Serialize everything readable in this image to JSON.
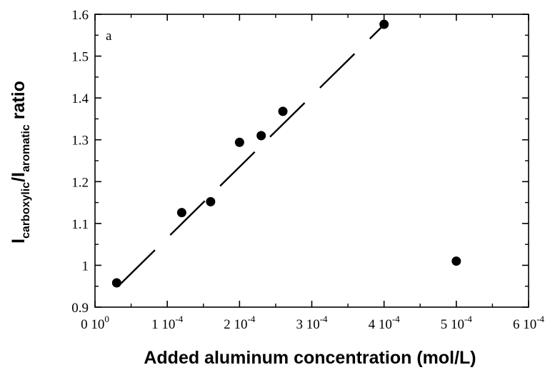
{
  "chart_data": {
    "type": "scatter",
    "panel_label": "a",
    "xlabel": "Added aluminum concentration (mol/L)",
    "ylabel": {
      "main": "I",
      "sub1": "carboxylic",
      "mid": "/I",
      "sub2": "aromatic",
      "tail": " ratio"
    },
    "xlim": [
      0,
      0.0006
    ],
    "ylim": [
      0.9,
      1.6
    ],
    "x_ticks": [
      {
        "value": 0,
        "mantissa": "0",
        "base": "10",
        "exp": "0"
      },
      {
        "value": 0.0001,
        "mantissa": "1",
        "base": "10",
        "exp": "-4"
      },
      {
        "value": 0.0002,
        "mantissa": "2",
        "base": "10",
        "exp": "-4"
      },
      {
        "value": 0.0003,
        "mantissa": "3",
        "base": "10",
        "exp": "-4"
      },
      {
        "value": 0.0004,
        "mantissa": "4",
        "base": "10",
        "exp": "-4"
      },
      {
        "value": 0.0005,
        "mantissa": "5",
        "base": "10",
        "exp": "-4"
      },
      {
        "value": 0.0006,
        "mantissa": "6",
        "base": "10",
        "exp": "-4"
      }
    ],
    "y_ticks": [
      "0.9",
      "1",
      "1.1",
      "1.2",
      "1.3",
      "1.4",
      "1.5",
      "1.6"
    ],
    "points": [
      {
        "x": 3e-05,
        "y": 0.958
      },
      {
        "x": 0.00012,
        "y": 1.126
      },
      {
        "x": 0.00016,
        "y": 1.152
      },
      {
        "x": 0.0002,
        "y": 1.294
      },
      {
        "x": 0.00023,
        "y": 1.31
      },
      {
        "x": 0.00026,
        "y": 1.368
      },
      {
        "x": 0.0004,
        "y": 1.576
      },
      {
        "x": 0.0005,
        "y": 1.01
      }
    ],
    "fit_line": {
      "style": "dashed",
      "x_start": 3.5e-05,
      "y_start": 0.955,
      "x_end": 0.0004,
      "y_end": 1.575
    },
    "grid": false,
    "legend": false
  }
}
